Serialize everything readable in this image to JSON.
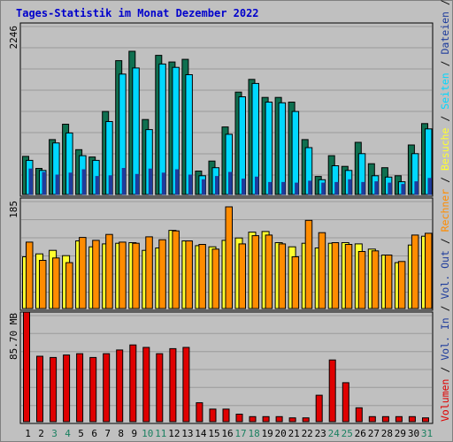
{
  "chart_data": {
    "type": "bar",
    "title": "Tages-Statistik im Monat Dezember 2022",
    "categories": [
      "1",
      "2",
      "3",
      "4",
      "5",
      "6",
      "7",
      "8",
      "9",
      "10",
      "11",
      "12",
      "13",
      "14",
      "15",
      "16",
      "17",
      "18",
      "19",
      "20",
      "21",
      "22",
      "23",
      "24",
      "25",
      "26",
      "27",
      "28",
      "29",
      "30",
      "31"
    ],
    "weekend_days": [
      "3",
      "4",
      "10",
      "11",
      "17",
      "18",
      "24",
      "25",
      "31"
    ],
    "colors": {
      "title": "#0000cc",
      "weekday_label": "#000000",
      "weekend_label": "#1a8060",
      "anfragen": "#0f7050",
      "dateien": "#00d8ff",
      "seiten": "#1e3c9c",
      "besuche": "#ffff2e",
      "rechner": "#ff8c00",
      "volumen": "#e00000",
      "grid": "#9a9a9a",
      "panel_bg": "#c0c0c0"
    },
    "panels": [
      {
        "id": "top",
        "ymax_label": "2246",
        "ylim": [
          0,
          2246
        ],
        "series": [
          {
            "name": "Anfragen",
            "key": "anfragen",
            "values": [
              570,
              390,
              820,
              1050,
              670,
              560,
              1240,
              2000,
              2140,
              1120,
              2080,
              1980,
              2020,
              350,
              500,
              1010,
              1530,
              1720,
              1450,
              1450,
              1380,
              820,
              270,
              580,
              420,
              780,
              460,
              400,
              280,
              740,
              1060
            ]
          },
          {
            "name": "Dateien",
            "key": "dateien",
            "values": [
              510,
              360,
              770,
              920,
              580,
              510,
              1090,
              1800,
              1890,
              970,
              1950,
              1900,
              1790,
              280,
              400,
              900,
              1460,
              1660,
              1380,
              1370,
              1240,
              700,
              220,
              430,
              360,
              610,
              280,
              260,
              190,
              610,
              980
            ]
          },
          {
            "name": "Seiten",
            "key": "seiten",
            "values": [
              380,
              330,
              290,
              320,
              370,
              270,
              280,
              390,
              300,
              380,
              320,
              370,
              290,
              220,
              270,
              330,
              230,
              260,
              180,
              180,
              170,
              200,
              170,
              180,
              220,
              180,
              190,
              170,
              150,
              190,
              240
            ]
          }
        ],
        "legend": [
          "Anfragen",
          "Dateien",
          "Seiten"
        ]
      },
      {
        "id": "middle",
        "ymax_label": "185",
        "ylim": [
          0,
          185
        ],
        "series": [
          {
            "name": "Besuche",
            "key": "besuche",
            "values": [
              88,
              93,
              99,
              90,
              115,
              105,
              110,
              111,
              112,
              99,
              103,
              133,
              115,
              107,
              105,
              116,
              120,
              130,
              131,
              112,
              105,
              111,
              103,
              111,
              112,
              110,
              101,
              91,
              78,
              108,
              123
            ]
          },
          {
            "name": "Rechner",
            "key": "rechner",
            "values": [
              113,
              82,
              86,
              78,
              121,
              116,
              126,
              113,
              111,
              122,
              117,
              132,
              115,
              109,
              101,
              173,
              110,
              124,
              125,
              110,
              88,
              150,
              129,
              112,
              109,
              97,
              98,
              91,
              80,
              125,
              128
            ]
          }
        ],
        "legend": [
          "Besuche",
          "Rechner",
          "Vol. Out",
          "Vol. In"
        ]
      },
      {
        "id": "bottom",
        "ymax_label": "85.70 MB",
        "ylim": [
          0,
          85.7
        ],
        "series": [
          {
            "name": "Volumen",
            "key": "volumen",
            "values": [
              87,
              52,
              51,
              53,
              54,
              51,
              54,
              57,
              61,
              59,
              54,
              58,
              59,
              15,
              10,
              10,
              6,
              4,
              4,
              4,
              3,
              3,
              21,
              49,
              31,
              11,
              4,
              4,
              4,
              4,
              3
            ]
          }
        ],
        "legend": [
          "Volumen"
        ]
      }
    ],
    "right_legend": {
      "sep": " / ",
      "items": [
        {
          "label": "Volumen",
          "key": "volumen"
        },
        {
          "label": "Vol. In",
          "key": "seiten"
        },
        {
          "label": "Vol. Out",
          "key": "seiten"
        },
        {
          "label": "Rechner",
          "key": "rechner"
        },
        {
          "label": "Besuche",
          "key": "besuche"
        },
        {
          "label": "Seiten",
          "key": "dateien"
        },
        {
          "label": "Dateien",
          "key": "seiten"
        },
        {
          "label": "Anfragen",
          "key": "anfragen"
        }
      ]
    }
  }
}
